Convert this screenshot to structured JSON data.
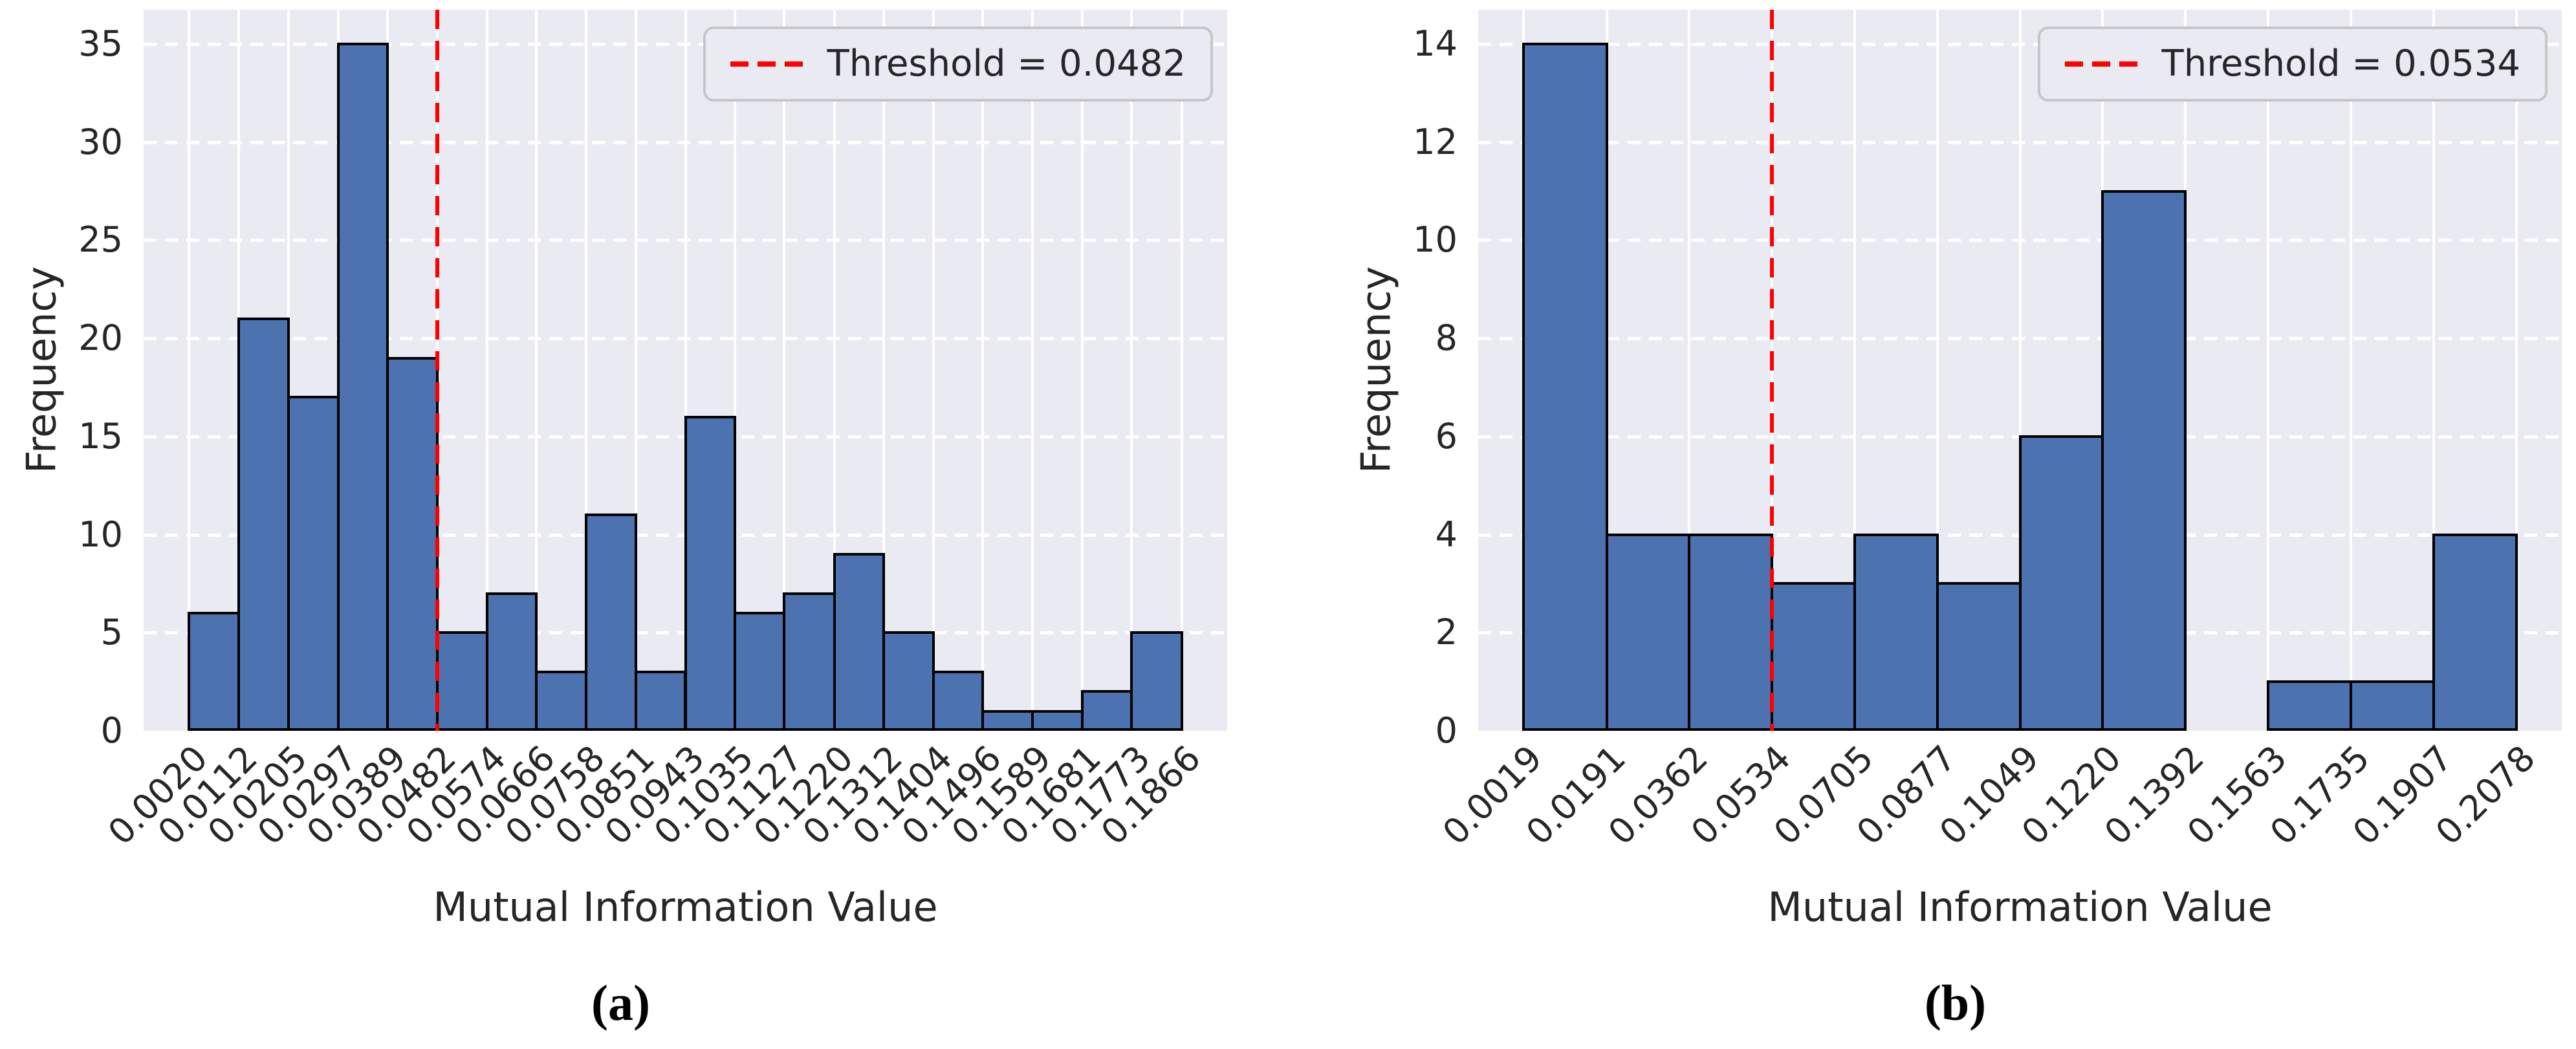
{
  "figure": {
    "background": "#FFFFFF",
    "description_visible_panels": [
      "(a)",
      "(b)"
    ]
  },
  "colors": {
    "bar_fill": "#4C72B0",
    "bar_edge": "#000000",
    "plot_background": "#EAEAF2",
    "gridline": "#FFFFFF",
    "threshold_line": "#FF0000",
    "legend_border": "#C6C6C6",
    "text": "#262626"
  },
  "chart_data": [
    {
      "type": "bar",
      "subtype": "histogram",
      "panel_caption": "(a)",
      "xlabel": "Mutual Information Value",
      "ylabel": "Frequency",
      "xtick_labels": [
        "0.0020",
        "0.0112",
        "0.0205",
        "0.0297",
        "0.0389",
        "0.0482",
        "0.0574",
        "0.0666",
        "0.0758",
        "0.0851",
        "0.0943",
        "0.1035",
        "0.1127",
        "0.1220",
        "0.1312",
        "0.1404",
        "0.1496",
        "0.1589",
        "0.1681",
        "0.1773",
        "0.1866"
      ],
      "ytick_labels": [
        "0",
        "5",
        "10",
        "15",
        "20",
        "25",
        "30",
        "35"
      ],
      "values": [
        6,
        21,
        17,
        35,
        19,
        5,
        7,
        3,
        11,
        3,
        16,
        6,
        7,
        9,
        5,
        3,
        1,
        1,
        2,
        5
      ],
      "ylim": [
        0,
        36.75
      ],
      "threshold": 0.0482,
      "legend": "Threshold = 0.0482",
      "legend_position": "upper right",
      "grid": "horizontal dashed white, vertical solid white at bin edges"
    },
    {
      "type": "bar",
      "subtype": "histogram",
      "panel_caption": "(b)",
      "xlabel": "Mutual Information Value",
      "ylabel": "Frequency",
      "xtick_labels": [
        "0.0019",
        "0.0191",
        "0.0362",
        "0.0534",
        "0.0705",
        "0.0877",
        "0.1049",
        "0.1220",
        "0.1392",
        "0.1563",
        "0.1735",
        "0.1907",
        "0.2078"
      ],
      "ytick_labels": [
        "0",
        "2",
        "4",
        "6",
        "8",
        "10",
        "12",
        "14"
      ],
      "values": [
        14,
        4,
        4,
        3,
        4,
        3,
        6,
        11,
        0,
        1,
        1,
        4
      ],
      "ylim": [
        0,
        14.7
      ],
      "threshold": 0.0534,
      "legend": "Threshold = 0.0534",
      "legend_position": "upper right",
      "grid": "horizontal dashed white, vertical solid white at bin edges"
    }
  ]
}
